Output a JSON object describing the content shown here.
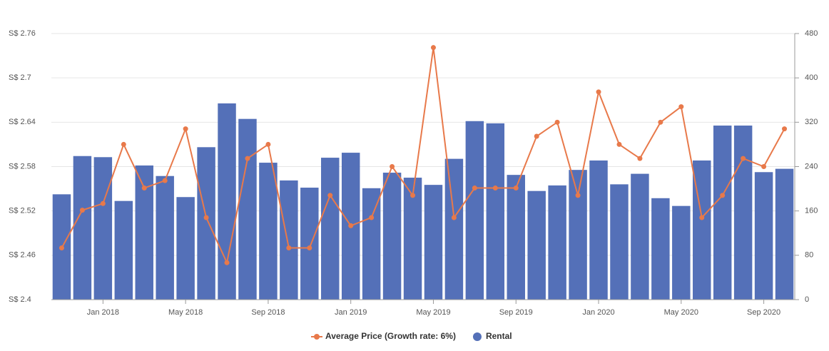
{
  "chart_data": {
    "type": "bar-line",
    "categories": [
      null,
      null,
      "Jan 2018",
      null,
      null,
      null,
      "May 2018",
      null,
      null,
      null,
      "Sep 2018",
      null,
      null,
      null,
      "Jan 2019",
      null,
      null,
      null,
      "May 2019",
      null,
      null,
      null,
      "Sep 2019",
      null,
      null,
      null,
      "Jan 2020",
      null,
      null,
      null,
      "May 2020",
      null,
      null,
      null,
      "Sep 2020",
      null
    ],
    "series": [
      {
        "name": "Rental",
        "type": "bar",
        "axis": "y2",
        "color": "#5470b8",
        "values": [
          190,
          259,
          257,
          178,
          242,
          223,
          185,
          275,
          354,
          326,
          247,
          215,
          202,
          256,
          265,
          201,
          229,
          220,
          207,
          254,
          322,
          318,
          225,
          196,
          206,
          234,
          251,
          208,
          227,
          183,
          169,
          251,
          314,
          314,
          230,
          236
        ]
      },
      {
        "name": "Average Price (Growth rate: 6%)",
        "type": "line",
        "color": "#e8794a",
        "values": [
          2.47,
          2.521,
          2.53,
          2.61,
          2.551,
          2.561,
          2.631,
          2.511,
          2.45,
          2.591,
          2.61,
          2.47,
          2.47,
          2.541,
          2.5,
          2.511,
          2.58,
          2.541,
          2.741,
          2.511,
          2.551,
          2.551,
          2.551,
          2.621,
          2.64,
          2.541,
          2.681,
          2.61,
          2.591,
          2.64,
          2.661,
          2.511,
          2.541,
          2.591,
          2.58,
          2.631
        ]
      }
    ],
    "ylim": [
      2.4,
      2.76
    ],
    "yticks": [
      {
        "value": 2.4,
        "label": "S$ 2.4"
      },
      {
        "value": 2.46,
        "label": "S$ 2.46"
      },
      {
        "value": 2.52,
        "label": "S$ 2.52"
      },
      {
        "value": 2.58,
        "label": "S$ 2.58"
      },
      {
        "value": 2.64,
        "label": "S$ 2.64"
      },
      {
        "value": 2.7,
        "label": "S$ 2.7"
      },
      {
        "value": 2.76,
        "label": "S$ 2.76"
      }
    ],
    "y2lim": [
      0,
      480
    ],
    "y2ticks": [
      0,
      80,
      160,
      240,
      320,
      400,
      480
    ],
    "grid": true,
    "legend": "bottom"
  }
}
